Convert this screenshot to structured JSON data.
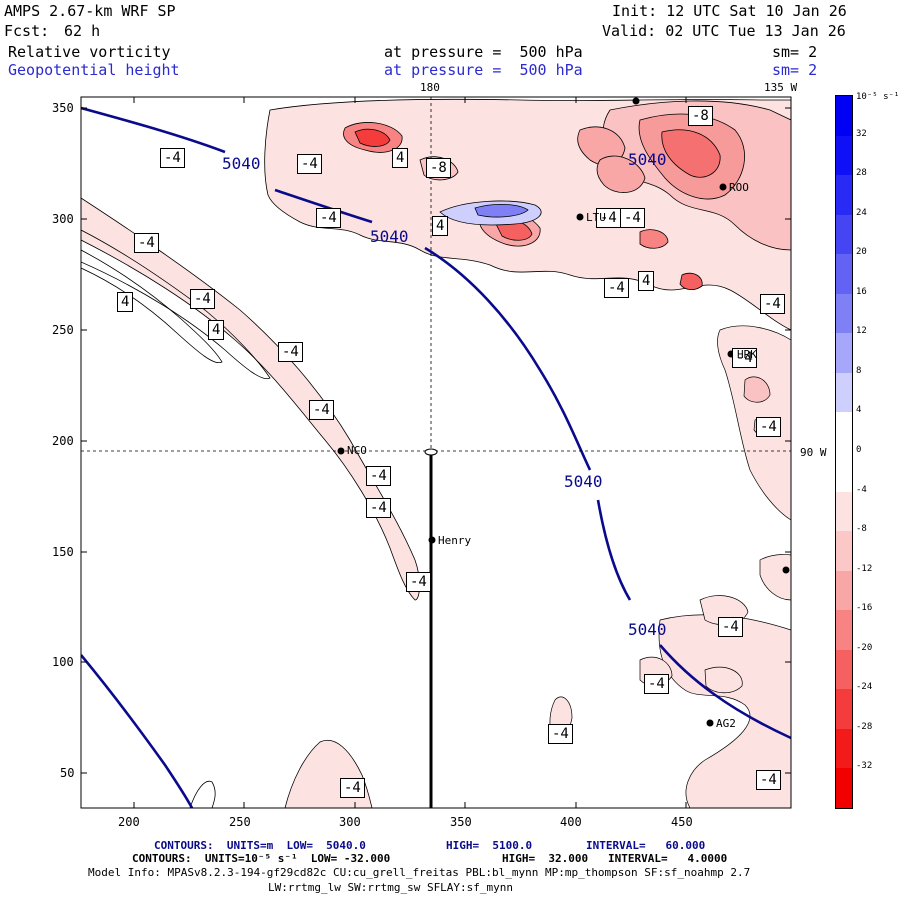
{
  "header": {
    "model": "AMPS 2.67-km WRF SP",
    "fcst_label": "Fcst:",
    "fcst_value": "62 h",
    "init": "Init: 12 UTC Sat 10 Jan 26",
    "valid": "Valid: 02 UTC Tue 13 Jan 26",
    "field1": "Relative vorticity",
    "field2": "Geopotential height",
    "pressure1": "at pressure =  500 hPa",
    "pressure2": "at pressure =  500 hPa",
    "sm1": "sm= 2",
    "sm2": "sm= 2"
  },
  "map": {
    "lon_top_180": "180",
    "lon_top_135w": "135 W",
    "lon_right_90w": "90 W",
    "height_labels": [
      "5040",
      "5040",
      "5040",
      "5040",
      "5040"
    ],
    "vort_labels": [
      "-4",
      "-4",
      "-4",
      "-4",
      "-4",
      "-4",
      "-4",
      "-4",
      "-4",
      "-4",
      "-4",
      "-4",
      "-4",
      "-4",
      "-4",
      "-4",
      "-4",
      "-4",
      "-4",
      "-4",
      "-4",
      "-8",
      "-8"
    ],
    "vort_pos_labels": [
      "4",
      "4",
      "4",
      "4",
      "4"
    ],
    "stations": [
      {
        "name": "NCO"
      },
      {
        "name": "Henry"
      },
      {
        "name": "AG2"
      },
      {
        "name": "HRK"
      },
      {
        "name": "ROO"
      },
      {
        "name": "LTU"
      }
    ],
    "x_ticks": [
      "200",
      "250",
      "300",
      "350",
      "400",
      "450"
    ],
    "y_ticks": [
      "350",
      "300",
      "250",
      "200",
      "150",
      "100",
      "50"
    ]
  },
  "colorbar": {
    "unit": "10⁻⁵ s⁻¹",
    "ticks": [
      "32",
      "28",
      "24",
      "20",
      "16",
      "12",
      "8",
      "4",
      "0",
      "-4",
      "-8",
      "-12",
      "-16",
      "-20",
      "-24",
      "-28",
      "-32"
    ],
    "colors": [
      "#0000f4",
      "#1010f6",
      "#2a2af6",
      "#4545f4",
      "#6262f4",
      "#8080f6",
      "#a6a6fa",
      "#cfcffd",
      "#ffffff",
      "#ffffff",
      "#fde2e2",
      "#fcc7c7",
      "#f9a6a6",
      "#f78383",
      "#f56060",
      "#f43c3c",
      "#f31a1a",
      "#f20000"
    ]
  },
  "footer": {
    "line1_a": "CONTOURS:  UNITS=m  LOW=  5040.0",
    "line1_b": "HIGH=  5100.0",
    "line1_c": "INTERVAL=   60.000",
    "line2_a": "CONTOURS:  UNITS=10⁻⁵ s⁻¹  LOW= -32.000",
    "line2_b": "HIGH=  32.000",
    "line2_c": "INTERVAL=   4.0000",
    "model_info": "Model Info: MPASv8.2.3-194-gf29cd82c CU:cu_grell_freitas PBL:bl_mynn MP:mp_thompson SF:sf_noahmp 2.7",
    "model_info2": "LW:rrtmg_lw SW:rrtmg_sw SFLAY:sf_mynn"
  }
}
